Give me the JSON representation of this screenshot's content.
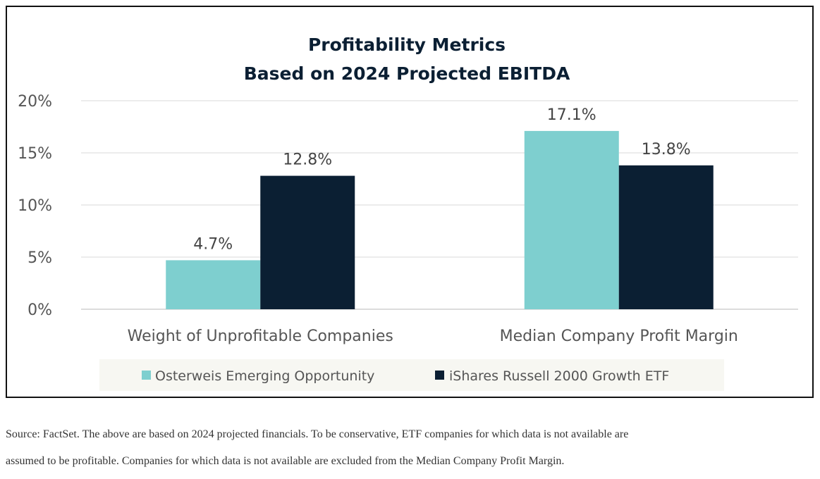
{
  "chart_data": {
    "type": "bar",
    "title_lines": [
      "Profitability Metrics",
      "Based on 2024 Projected EBITDA"
    ],
    "categories": [
      "Weight of Unprofitable Companies",
      "Median Company Profit Margin"
    ],
    "series": [
      {
        "name": "Osterweis Emerging Opportunity",
        "values": [
          4.7,
          17.1
        ],
        "labels": [
          "4.7%",
          "17.1%"
        ],
        "color": "#7ecfcf"
      },
      {
        "name": "iShares Russell 2000 Growth ETF",
        "values": [
          12.8,
          13.8
        ],
        "labels": [
          "12.8%",
          "13.8%"
        ],
        "color": "#0b1f33"
      }
    ],
    "y_ticks": [
      0,
      5,
      10,
      15,
      20
    ],
    "y_tick_labels": [
      "0%",
      "5%",
      "10%",
      "15%",
      "20%"
    ],
    "ylim": [
      0,
      20
    ],
    "grid": true,
    "legend_position": "bottom",
    "legend_background": "#f7f7f2"
  },
  "footer": {
    "source_line_1": "Source: FactSet. The above are based on 2024 projected financials. To be conservative, ETF companies for which data is not available are",
    "source_line_2": "assumed to be profitable. Companies for which data is not available are excluded from the Median Company Profit Margin."
  }
}
